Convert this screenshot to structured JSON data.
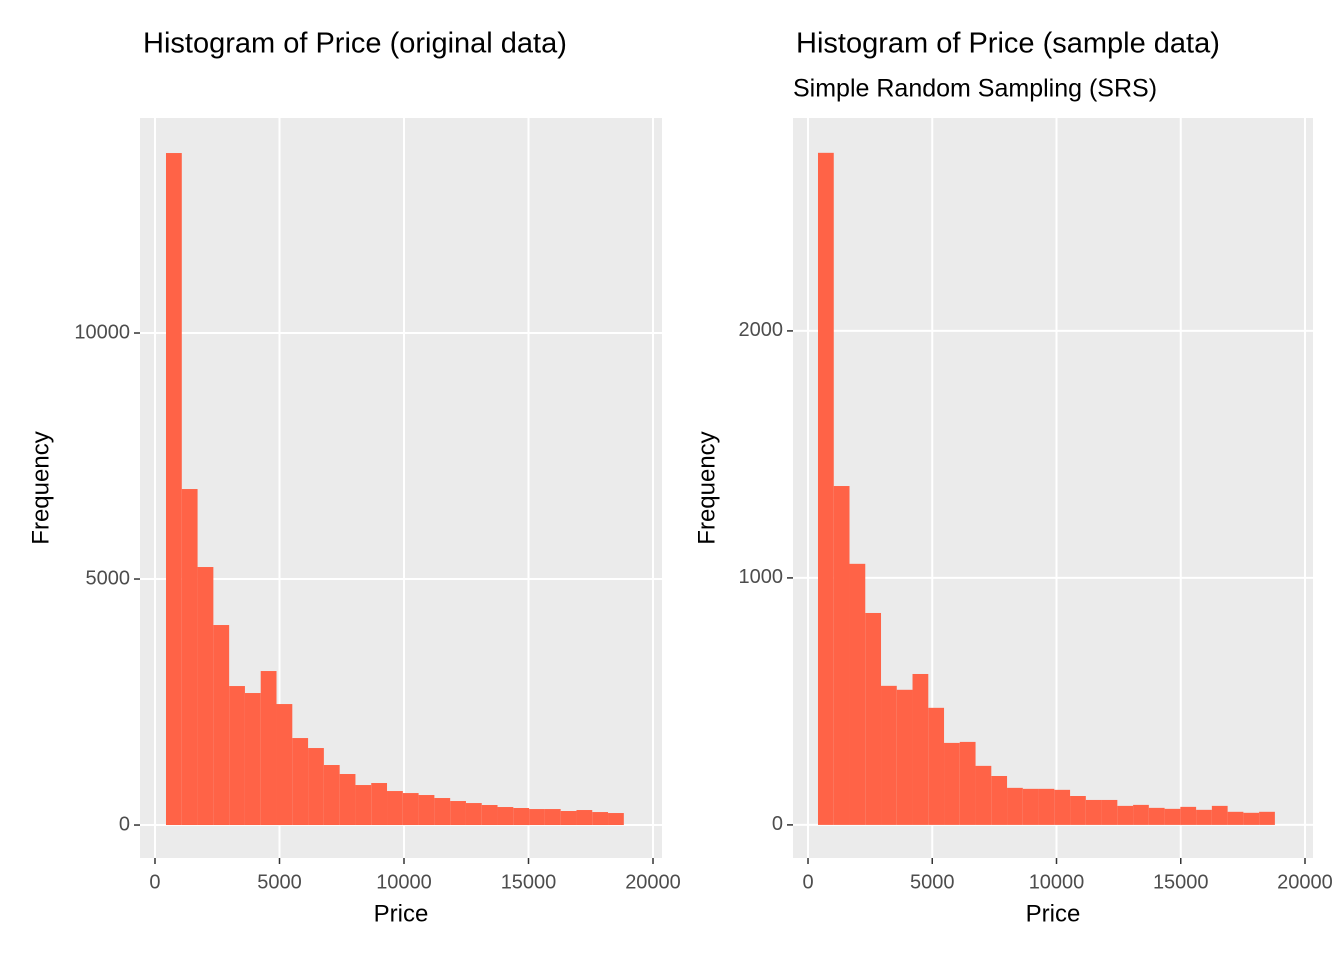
{
  "chart_data": [
    {
      "type": "histogram",
      "title": "Histogram of Price (original data)",
      "x_label": "Price",
      "y_label": "Frequency",
      "color": "#ff6347",
      "grid": true,
      "bins": [
        442,
        1076,
        1710,
        2344,
        2978,
        3612,
        4246,
        4880,
        5514,
        6148,
        6782,
        7416,
        8050,
        8684,
        9318,
        9952,
        10586,
        11220,
        11854,
        12488,
        13122,
        13756,
        14390,
        15024,
        15658,
        16292,
        16926,
        17560,
        18194,
        18828
      ],
      "values": [
        13658,
        6829,
        5244,
        4065,
        2825,
        2683,
        3130,
        2459,
        1768,
        1565,
        1220,
        1037,
        813,
        854,
        691,
        650,
        610,
        549,
        488,
        447,
        407,
        366,
        346,
        325,
        325,
        285,
        305,
        264,
        244
      ],
      "xlim": [
        -602,
        20361
      ],
      "ylim": [
        -670,
        14370
      ],
      "xticks": [
        0,
        5000,
        10000,
        15000,
        20000
      ],
      "yticks": [
        0,
        5000,
        10000
      ]
    },
    {
      "type": "histogram",
      "title": "Histogram of Price (sample data)",
      "subtitle": "Simple Random Sampling (SRS)",
      "x_label": "Price",
      "y_label": "Frequency",
      "color": "#ff6347",
      "grid": true,
      "bins": [
        402,
        1036,
        1670,
        2304,
        2938,
        3572,
        4206,
        4840,
        5474,
        6108,
        6742,
        7376,
        8010,
        8644,
        9278,
        9912,
        10546,
        11180,
        11814,
        12448,
        13082,
        13716,
        14350,
        14984,
        15618,
        16252,
        16886,
        17520,
        18154,
        18788
      ],
      "values": [
        2721,
        1372,
        1057,
        858,
        563,
        547,
        611,
        474,
        332,
        336,
        239,
        198,
        150,
        146,
        146,
        142,
        117,
        101,
        101,
        77,
        81,
        69,
        65,
        73,
        61,
        77,
        53,
        49,
        53
      ],
      "xlim": [
        -604,
        20322
      ],
      "ylim": [
        -134,
        2862
      ],
      "xticks": [
        0,
        5000,
        10000,
        15000,
        20000
      ],
      "yticks": [
        0,
        1000,
        2000
      ]
    }
  ]
}
